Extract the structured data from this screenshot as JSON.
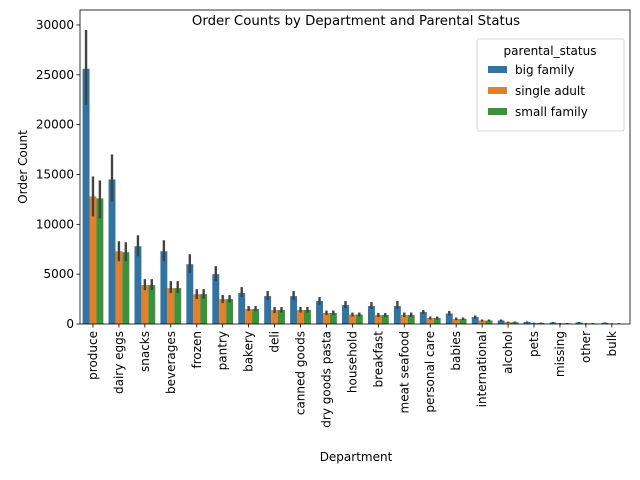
{
  "chart_data": {
    "type": "bar",
    "title": "Order Counts by Department and Parental Status",
    "xlabel": "Department",
    "ylabel": "Order Count",
    "ylim": [
      0,
      31500
    ],
    "yticks": [
      0,
      5000,
      10000,
      15000,
      20000,
      25000,
      30000
    ],
    "legend": {
      "title": "parental_status",
      "placement": "top-right"
    },
    "categories": [
      "produce",
      "dairy eggs",
      "snacks",
      "beverages",
      "frozen",
      "pantry",
      "bakery",
      "deli",
      "canned goods",
      "dry goods pasta",
      "household",
      "breakfast",
      "meat seafood",
      "personal care",
      "babies",
      "international",
      "alcohol",
      "pets",
      "missing",
      "other",
      "bulk"
    ],
    "series": [
      {
        "name": "big family",
        "color": "#3274a1",
        "values": [
          25600,
          14500,
          7800,
          7300,
          6000,
          5000,
          3100,
          2800,
          2800,
          2300,
          1900,
          1800,
          1800,
          1200,
          1050,
          700,
          350,
          200,
          150,
          150,
          120
        ],
        "ci_low": [
          22000,
          12300,
          6800,
          6300,
          5100,
          4300,
          2700,
          2400,
          2400,
          1950,
          1600,
          1500,
          1550,
          1000,
          850,
          550,
          250,
          150,
          100,
          100,
          80
        ],
        "ci_high": [
          29500,
          17000,
          8900,
          8400,
          7000,
          5800,
          3700,
          3300,
          3300,
          2700,
          2300,
          2200,
          2300,
          1400,
          1300,
          850,
          450,
          260,
          200,
          200,
          160
        ]
      },
      {
        "name": "single adult",
        "color": "#e1812c",
        "values": [
          12800,
          7300,
          3900,
          3600,
          3000,
          2500,
          1500,
          1400,
          1400,
          1100,
          950,
          900,
          900,
          600,
          500,
          350,
          170,
          100,
          70,
          60,
          50
        ],
        "ci_low": [
          10800,
          6300,
          3400,
          3100,
          2500,
          2100,
          1300,
          1100,
          1150,
          900,
          750,
          700,
          700,
          450,
          380,
          250,
          110,
          60,
          40,
          30,
          30
        ],
        "ci_high": [
          14800,
          8300,
          4500,
          4300,
          3500,
          2900,
          1800,
          1700,
          1700,
          1350,
          1150,
          1100,
          1150,
          750,
          650,
          450,
          240,
          140,
          100,
          90,
          80
        ]
      },
      {
        "name": "small family",
        "color": "#3a923a",
        "values": [
          12600,
          7200,
          3900,
          3600,
          3000,
          2500,
          1500,
          1400,
          1400,
          1100,
          950,
          900,
          900,
          600,
          520,
          350,
          180,
          100,
          70,
          60,
          50
        ],
        "ci_low": [
          10600,
          6300,
          3400,
          3100,
          2550,
          2150,
          1300,
          1150,
          1150,
          900,
          750,
          700,
          720,
          450,
          400,
          260,
          120,
          60,
          40,
          30,
          30
        ],
        "ci_high": [
          14400,
          8200,
          4500,
          4300,
          3500,
          2900,
          1800,
          1700,
          1700,
          1350,
          1150,
          1100,
          1150,
          750,
          650,
          450,
          250,
          140,
          100,
          90,
          80
        ]
      }
    ]
  }
}
